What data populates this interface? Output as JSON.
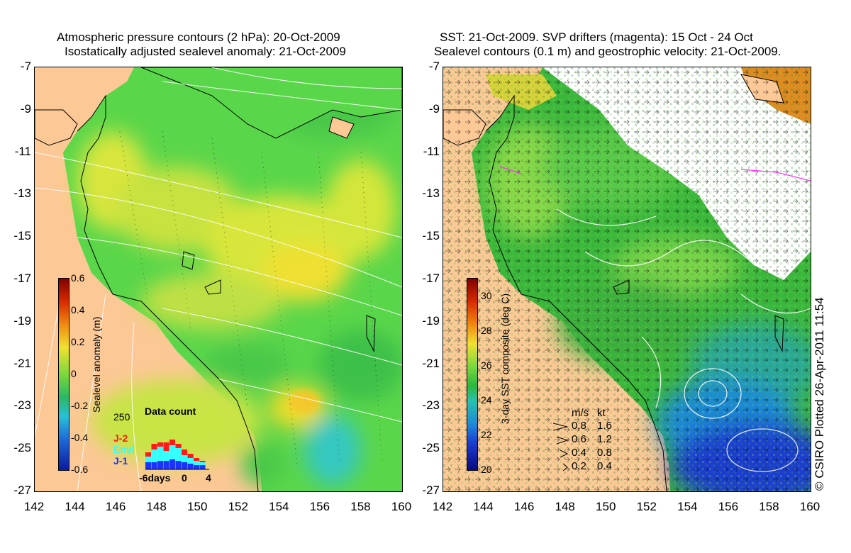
{
  "left_panel": {
    "title_line1": "Atmospheric pressure contours (2 hPa): 20-Oct-2009",
    "title_line2": "Isostatically adjusted sealevel anomaly: 21-Oct-2009",
    "colorbar": {
      "label": "Sealevel anomaly (m)",
      "ticks": [
        "0.6",
        "0.4",
        "0.2",
        "0",
        "-0.2",
        "-0.4",
        "-0.6"
      ],
      "range": [
        -0.6,
        0.6
      ]
    },
    "data_count": {
      "title": "Data count",
      "ymax_label": "250",
      "x_labels": [
        "-6days",
        "0",
        "4"
      ],
      "legend": [
        {
          "name": "J-2",
          "color": "#ff1a1a"
        },
        {
          "name": "Envi",
          "color": "#33ffff"
        },
        {
          "name": "J-1",
          "color": "#1a33ff"
        }
      ]
    }
  },
  "right_panel": {
    "title_line1": "SST: 21-Oct-2009. SVP drifters (magenta): 15 Oct - 24 Oct",
    "title_line2": "Sealevel contours (0.1 m) and geostrophic velocity: 21-Oct-2009.",
    "colorbar": {
      "label": "3-day SST composite (deg C)",
      "ticks": [
        "30",
        "28",
        "26",
        "24",
        "22",
        "20"
      ],
      "range": [
        20,
        31
      ]
    },
    "velocity_legend": {
      "header_ms": "m/s",
      "header_kt": "kt",
      "rows": [
        {
          "ms": "0.8",
          "kt": "1.6"
        },
        {
          "ms": "0.6",
          "kt": "1.2"
        },
        {
          "ms": "0.4",
          "kt": "0.8"
        },
        {
          "ms": "0.2",
          "kt": "0.4"
        }
      ]
    }
  },
  "axes": {
    "y_ticks": [
      "-7",
      "-9",
      "-11",
      "-13",
      "-15",
      "-17",
      "-19",
      "-21",
      "-23",
      "-25",
      "-27"
    ],
    "x_ticks": [
      "142",
      "144",
      "146",
      "148",
      "150",
      "152",
      "154",
      "156",
      "158",
      "160"
    ],
    "lat_range": [
      -27,
      -7
    ],
    "lon_range": [
      142,
      160
    ]
  },
  "credit": "© CSIRO Plotted 26-Apr-2011 11:54",
  "colors": {
    "land": "#fcc896",
    "ocean_green": "#55d84a",
    "anomaly_yellow": "#d8e83a",
    "sst_green": "#3cb83c",
    "sst_cool": "#2a8ad8",
    "sst_cold": "#1838c8",
    "cloud": "#ffffff",
    "drifter": "#ff33ff"
  }
}
